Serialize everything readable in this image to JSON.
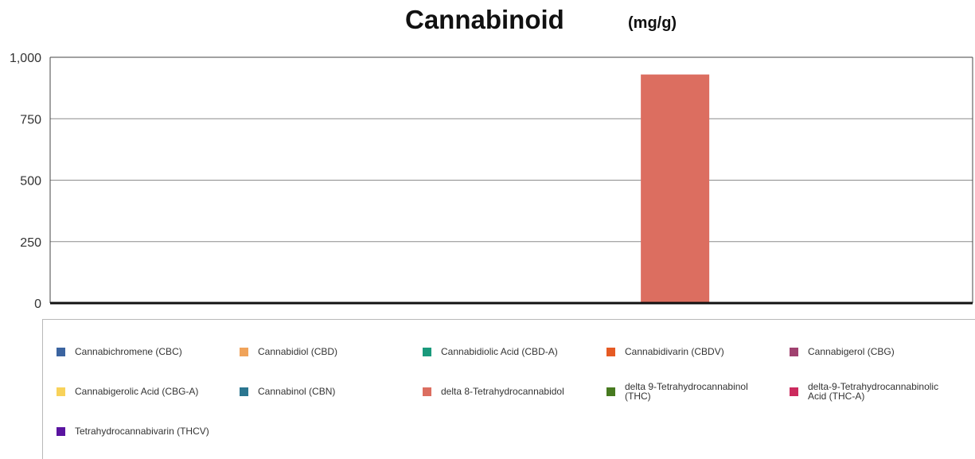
{
  "title": "Cannabinoid",
  "unit": "(mg/g)",
  "chart_data": {
    "type": "bar",
    "title": "Cannabinoid",
    "subtitle": "(mg/g)",
    "xlabel": "",
    "ylabel": "",
    "ylim": [
      0,
      1000
    ],
    "yticks": [
      0,
      250,
      500,
      750,
      1000
    ],
    "ytick_labels": [
      "0",
      "250",
      "500",
      "750",
      "1,000"
    ],
    "grid": true,
    "legend_position": "bottom",
    "categories": [
      ""
    ],
    "series": [
      {
        "name": "Cannabichromene (CBC)",
        "color": "#3b64a0",
        "values": [
          0
        ]
      },
      {
        "name": "Cannabidiol (CBD)",
        "color": "#f0a35a",
        "values": [
          0
        ]
      },
      {
        "name": "Cannabidiolic Acid (CBD-A)",
        "color": "#1a9a7c",
        "values": [
          0
        ]
      },
      {
        "name": "Cannabidivarin (CBDV)",
        "color": "#e55a24",
        "values": [
          0
        ]
      },
      {
        "name": "Cannabigerol (CBG)",
        "color": "#a0416f",
        "values": [
          0
        ]
      },
      {
        "name": "Cannabigerolic Acid (CBG-A)",
        "color": "#f8d25a",
        "values": [
          0
        ]
      },
      {
        "name": "Cannabinol (CBN)",
        "color": "#2b7690",
        "values": [
          0
        ]
      },
      {
        "name": "delta 8-Tetrahydrocannabidol",
        "color": "#dc6e60",
        "values": [
          930
        ]
      },
      {
        "name": "delta 9-Tetrahydrocannabinol (THC)",
        "color": "#477a20",
        "values": [
          0
        ]
      },
      {
        "name": "delta-9-Tetrahydrocannabinolic Acid (THC-A)",
        "color": "#cc2b5e",
        "values": [
          0
        ]
      },
      {
        "name": "Tetrahydrocannabivarin (THCV)",
        "color": "#5a14a0",
        "values": [
          0
        ]
      }
    ]
  }
}
